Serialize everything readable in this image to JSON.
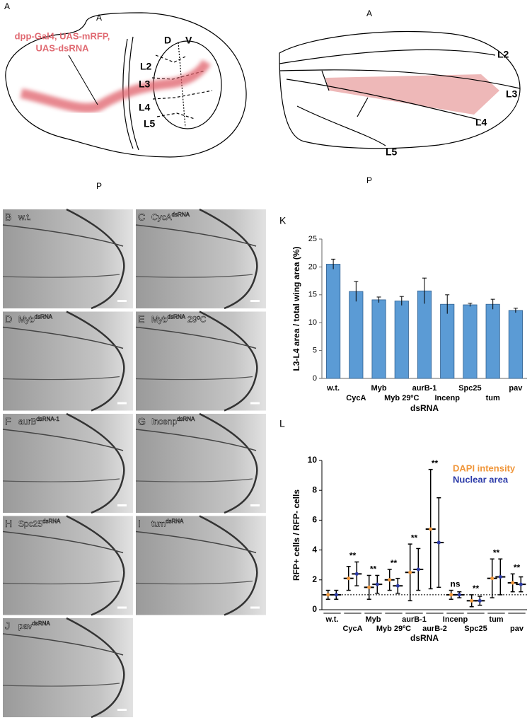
{
  "diagram_a": {
    "panel_label": "A",
    "anterior": "A",
    "posterior": "P",
    "driver_lines": [
      "dpp-Gal4, UAS-mRFP,",
      "UAS-dsRNA"
    ],
    "dorsal": "D",
    "ventral": "V",
    "veins": [
      "L2",
      "L3",
      "L4",
      "L5"
    ]
  },
  "diagram_wing": {
    "anterior": "A",
    "posterior": "P",
    "veins": [
      "L2",
      "L3",
      "L4",
      "L5"
    ]
  },
  "micrographs": [
    {
      "label": "B",
      "name": "w.t."
    },
    {
      "label": "C",
      "name": "CycA",
      "sup": "dsRNA"
    },
    {
      "label": "D",
      "name": "Myb",
      "sup": "dsRNA"
    },
    {
      "label": "E",
      "name": "Myb",
      "sup": "dsRNA",
      "suffix": "29ºC"
    },
    {
      "label": "F",
      "name": "aurB",
      "sup": "dsRNA-1"
    },
    {
      "label": "G",
      "name": "Incenp",
      "sup": "dsRNA"
    },
    {
      "label": "H",
      "name": "Spc25",
      "sup": "dsRNA"
    },
    {
      "label": "I",
      "name": "tum",
      "sup": "dsRNA"
    },
    {
      "label": "J",
      "name": "pav",
      "sup": "dsRNA"
    }
  ],
  "chart_data": [
    {
      "type": "bar",
      "panel_label": "K",
      "y_label": "L3-L4 area / total wing area (%)",
      "x_label": "dsRNA",
      "categories": [
        "w.t.",
        "CycA",
        "Myb",
        "Myb 29ºC",
        "aurB-1",
        "Incenp",
        "Spc25",
        "tum",
        "pav"
      ],
      "values": [
        20.5,
        15.6,
        14.1,
        13.9,
        15.7,
        13.3,
        13.2,
        13.3,
        12.2
      ],
      "errors": [
        0.9,
        1.8,
        0.5,
        0.8,
        2.3,
        1.7,
        0.3,
        0.9,
        0.4
      ],
      "color": "#5b9bd5",
      "ylim": [
        0,
        25
      ],
      "yticks": [
        0,
        5,
        10,
        15,
        20,
        25
      ]
    },
    {
      "type": "dot",
      "panel_label": "L",
      "y_label": "RFP+ cells / RFP- cells",
      "x_label": "dsRNA",
      "categories": [
        "w.t.",
        "CycA",
        "Myb",
        "Myb 29ºC",
        "aurB-1",
        "aurB-2",
        "Incenp",
        "Spc25",
        "tum",
        "pav"
      ],
      "series": [
        {
          "name": "DAPI intensity",
          "color": "#f0963a",
          "values": [
            1.0,
            2.1,
            1.5,
            2.0,
            2.5,
            5.4,
            1.0,
            0.6,
            2.1,
            1.8
          ],
          "sd": [
            0.3,
            0.8,
            0.8,
            0.7,
            1.9,
            4.0,
            0.3,
            0.4,
            1.3,
            0.6
          ]
        },
        {
          "name": "Nuclear area",
          "color": "#2b3aa8",
          "values": [
            1.0,
            2.4,
            1.7,
            1.6,
            2.7,
            4.5,
            1.0,
            0.6,
            2.2,
            1.7
          ],
          "sd": [
            0.3,
            0.8,
            0.6,
            0.5,
            1.4,
            3.0,
            0.2,
            0.3,
            1.2,
            0.5
          ]
        }
      ],
      "significance": [
        null,
        "**",
        "**",
        "**",
        "**",
        "**",
        "ns",
        "**",
        "**",
        "**"
      ],
      "reference_line": 1,
      "ylim": [
        0,
        10
      ],
      "yticks": [
        0,
        2,
        4,
        6,
        8,
        10
      ]
    }
  ]
}
